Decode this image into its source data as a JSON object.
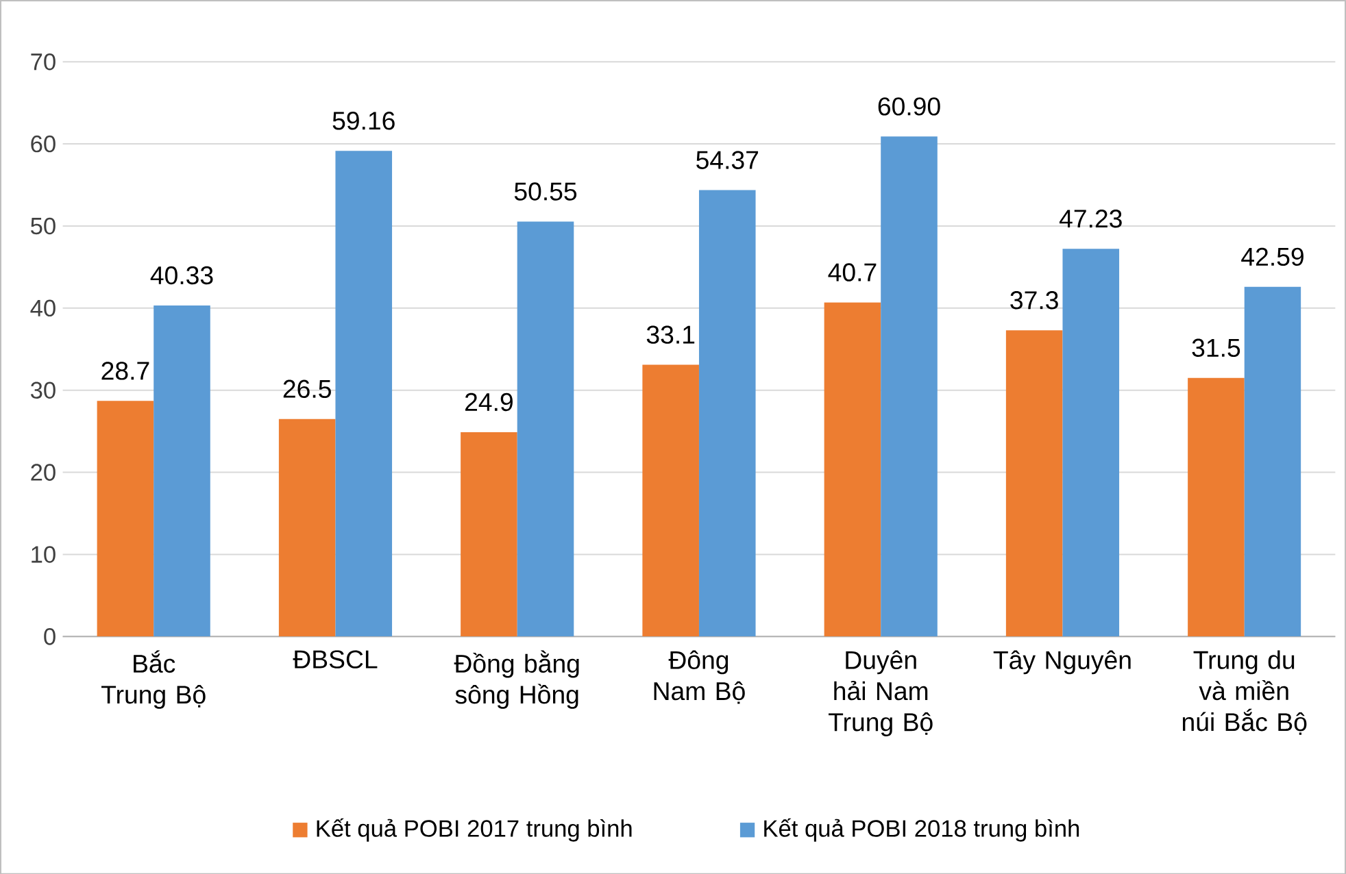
{
  "chart_data": {
    "type": "bar",
    "categories": [
      "Bắc Trung Bộ",
      "ĐBSCL",
      "Đồng bằng sông Hồng",
      "Đông Nam Bộ",
      "Duyên hải Nam Trung Bộ",
      "Tây Nguyên",
      "Trung du và miền núi Bắc Bộ"
    ],
    "series": [
      {
        "name": "Kết quả POBI 2017 trung bình",
        "color": "#ed7d31",
        "values": [
          28.7,
          26.5,
          24.9,
          33.1,
          40.7,
          37.3,
          31.5
        ],
        "value_labels": [
          "28.7",
          "26.5",
          "24.9",
          "33.1",
          "40.7",
          "37.3",
          "31.5"
        ]
      },
      {
        "name": "Kết quả POBI 2018 trung bình",
        "color": "#5b9bd5",
        "values": [
          40.33,
          59.16,
          50.55,
          54.37,
          60.9,
          47.23,
          42.59
        ],
        "value_labels": [
          "40.33",
          "59.16",
          "50.55",
          "54.37",
          "60.90",
          "47.23",
          "42.59"
        ]
      }
    ],
    "ylim": [
      0,
      70
    ],
    "yticks": [
      0,
      10,
      20,
      30,
      40,
      50,
      60,
      70
    ],
    "grid": "y",
    "legend": "bottom"
  }
}
